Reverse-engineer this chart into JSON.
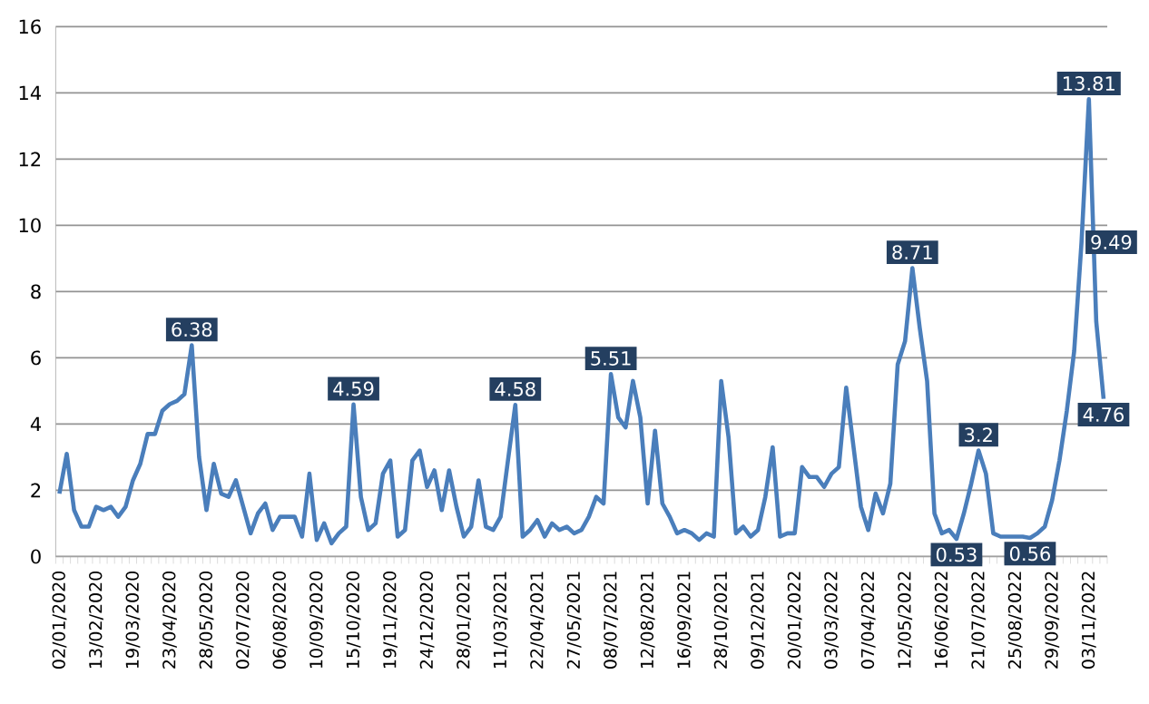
{
  "chart_data": {
    "type": "line",
    "categories": [
      "02/01/2020",
      null,
      null,
      null,
      null,
      "13/02/2020",
      null,
      null,
      null,
      null,
      "19/03/2020",
      null,
      null,
      null,
      null,
      "23/04/2020",
      null,
      null,
      null,
      null,
      "28/05/2020",
      null,
      null,
      null,
      null,
      "02/07/2020",
      null,
      null,
      null,
      null,
      "06/08/2020",
      null,
      null,
      null,
      null,
      "10/09/2020",
      null,
      null,
      null,
      null,
      "15/10/2020",
      null,
      null,
      null,
      null,
      "19/11/2020",
      null,
      null,
      null,
      null,
      "24/12/2020",
      null,
      null,
      null,
      null,
      "28/01/2021",
      null,
      null,
      null,
      null,
      "11/03/2021",
      null,
      null,
      null,
      null,
      "22/04/2021",
      null,
      null,
      null,
      null,
      "27/05/2021",
      null,
      null,
      null,
      null,
      "08/07/2021",
      null,
      null,
      null,
      null,
      "12/08/2021",
      null,
      null,
      null,
      null,
      "16/09/2021",
      null,
      null,
      null,
      null,
      "28/10/2021",
      null,
      null,
      null,
      null,
      "09/12/2021",
      null,
      null,
      null,
      null,
      "20/01/2022",
      null,
      null,
      null,
      null,
      "03/03/2022",
      null,
      null,
      null,
      null,
      "07/04/2022",
      null,
      null,
      null,
      null,
      "12/05/2022",
      null,
      null,
      null,
      null,
      "16/06/2022",
      null,
      null,
      null,
      null,
      "21/07/2022",
      null,
      null,
      null,
      null,
      "25/08/2022",
      null,
      null,
      null,
      null,
      "29/09/2022",
      null,
      null,
      null,
      null,
      "03/11/2022",
      null,
      null
    ],
    "values": [
      1.9,
      3.1,
      1.4,
      0.9,
      0.9,
      1.5,
      1.4,
      1.5,
      1.2,
      1.5,
      2.3,
      2.8,
      3.7,
      3.7,
      4.4,
      4.6,
      4.7,
      4.9,
      6.38,
      3.0,
      1.4,
      2.8,
      1.9,
      1.8,
      2.3,
      1.5,
      0.7,
      1.3,
      1.6,
      0.8,
      1.2,
      1.2,
      1.2,
      0.6,
      2.5,
      0.5,
      1.0,
      0.4,
      0.7,
      0.9,
      4.59,
      1.8,
      0.8,
      1.0,
      2.5,
      2.9,
      0.6,
      0.8,
      2.9,
      3.2,
      2.1,
      2.6,
      1.4,
      2.6,
      1.5,
      0.6,
      0.9,
      2.3,
      0.9,
      0.8,
      1.2,
      2.9,
      4.58,
      0.6,
      0.8,
      1.1,
      0.6,
      1.0,
      0.8,
      0.9,
      0.7,
      0.8,
      1.2,
      1.8,
      1.6,
      5.51,
      4.2,
      3.9,
      5.3,
      4.2,
      1.6,
      3.8,
      1.6,
      1.2,
      0.7,
      0.8,
      0.7,
      0.5,
      0.7,
      0.6,
      5.3,
      3.6,
      0.7,
      0.9,
      0.6,
      0.8,
      1.8,
      3.3,
      0.6,
      0.7,
      0.7,
      2.7,
      2.4,
      2.4,
      2.1,
      2.5,
      2.7,
      5.1,
      3.3,
      1.5,
      0.8,
      1.9,
      1.3,
      2.2,
      5.8,
      6.5,
      8.71,
      6.9,
      5.3,
      1.3,
      0.7,
      0.8,
      0.53,
      1.3,
      2.2,
      3.2,
      2.5,
      0.7,
      0.6,
      0.6,
      0.6,
      0.6,
      0.56,
      0.7,
      0.9,
      1.7,
      2.9,
      4.4,
      6.2,
      9.49,
      13.81,
      7.1,
      4.76
    ],
    "value_labels": [
      null,
      null,
      null,
      null,
      null,
      null,
      null,
      null,
      null,
      null,
      null,
      null,
      null,
      null,
      null,
      null,
      null,
      null,
      "6.38",
      null,
      null,
      null,
      null,
      null,
      null,
      null,
      null,
      null,
      null,
      null,
      null,
      null,
      null,
      null,
      null,
      null,
      null,
      null,
      null,
      null,
      "4.59",
      null,
      null,
      null,
      null,
      null,
      null,
      null,
      null,
      null,
      null,
      null,
      null,
      null,
      null,
      null,
      null,
      null,
      null,
      null,
      null,
      null,
      "4.58",
      null,
      null,
      null,
      null,
      null,
      null,
      null,
      null,
      null,
      null,
      null,
      null,
      "5.51",
      null,
      null,
      null,
      null,
      null,
      null,
      null,
      null,
      null,
      null,
      null,
      null,
      null,
      null,
      null,
      null,
      null,
      null,
      null,
      null,
      null,
      null,
      null,
      null,
      null,
      null,
      null,
      null,
      null,
      null,
      null,
      null,
      null,
      null,
      null,
      null,
      null,
      null,
      null,
      null,
      "8.71",
      null,
      null,
      null,
      null,
      null,
      "0.53",
      null,
      null,
      "3.2",
      null,
      null,
      null,
      null,
      null,
      null,
      "0.56",
      null,
      null,
      null,
      null,
      null,
      null,
      "9.49",
      "13.81",
      null,
      "4.76"
    ],
    "color": "#4a7ebb",
    "ylim": [
      0,
      16
    ],
    "yticks": [
      0,
      2,
      4,
      6,
      8,
      10,
      12,
      14,
      16
    ],
    "grid": "y"
  }
}
